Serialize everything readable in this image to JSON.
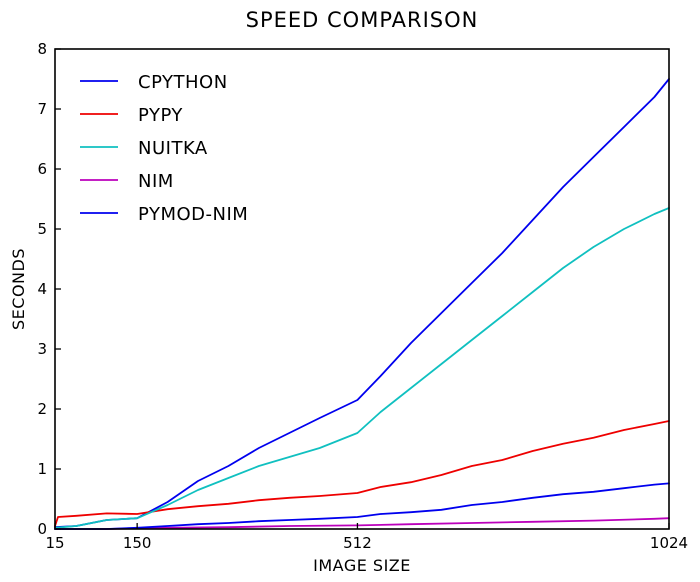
{
  "chart_data": {
    "type": "line",
    "title": "SPEED COMPARISON",
    "xlabel": "IMAGE SIZE",
    "ylabel": "SECONDS",
    "xlim": [
      15,
      1024
    ],
    "ylim": [
      0,
      8
    ],
    "x_ticks": [
      15,
      150,
      512,
      1024
    ],
    "x_tick_labels": [
      "15",
      "150",
      "512",
      "1024"
    ],
    "y_ticks": [
      0,
      1,
      2,
      3,
      4,
      5,
      6,
      7,
      8
    ],
    "y_tick_labels": [
      "0",
      "1",
      "2",
      "3",
      "4",
      "5",
      "6",
      "7",
      "8"
    ],
    "grid": false,
    "legend_position": "top-left",
    "series": [
      {
        "name": "CPYTHON",
        "color": "#0000ee",
        "x": [
          15,
          50,
          100,
          150,
          200,
          250,
          300,
          350,
          400,
          450,
          512,
          550,
          600,
          650,
          700,
          750,
          800,
          850,
          900,
          950,
          1000,
          1024
        ],
        "y": [
          0.03,
          0.05,
          0.15,
          0.18,
          0.45,
          0.8,
          1.05,
          1.35,
          1.6,
          1.85,
          2.15,
          2.55,
          3.1,
          3.6,
          4.1,
          4.6,
          5.15,
          5.7,
          6.2,
          6.7,
          7.2,
          7.5
        ]
      },
      {
        "name": "PYPY",
        "color": "#ee0000",
        "x": [
          15,
          20,
          50,
          100,
          150,
          200,
          250,
          300,
          350,
          400,
          450,
          512,
          550,
          600,
          650,
          700,
          750,
          800,
          850,
          900,
          950,
          1000,
          1024
        ],
        "y": [
          0.05,
          0.2,
          0.22,
          0.26,
          0.25,
          0.33,
          0.38,
          0.42,
          0.48,
          0.52,
          0.55,
          0.6,
          0.7,
          0.78,
          0.9,
          1.05,
          1.15,
          1.3,
          1.42,
          1.52,
          1.65,
          1.75,
          1.8
        ]
      },
      {
        "name": "NUITKA",
        "color": "#10c0c0",
        "x": [
          15,
          50,
          100,
          150,
          200,
          250,
          300,
          350,
          400,
          450,
          512,
          550,
          600,
          650,
          700,
          750,
          800,
          850,
          900,
          950,
          1000,
          1024
        ],
        "y": [
          0.02,
          0.05,
          0.15,
          0.18,
          0.4,
          0.65,
          0.85,
          1.05,
          1.2,
          1.35,
          1.6,
          1.95,
          2.35,
          2.75,
          3.15,
          3.55,
          3.95,
          4.35,
          4.7,
          5.0,
          5.25,
          5.35
        ]
      },
      {
        "name": "NIM",
        "color": "#bb00bb",
        "x": [
          15,
          100,
          150,
          200,
          300,
          400,
          512,
          600,
          700,
          800,
          900,
          1000,
          1024
        ],
        "y": [
          0.0,
          0.0,
          0.01,
          0.02,
          0.03,
          0.05,
          0.06,
          0.08,
          0.1,
          0.12,
          0.14,
          0.17,
          0.18
        ]
      },
      {
        "name": "PYMOD-NIM",
        "color": "#0000ee",
        "x": [
          15,
          100,
          150,
          200,
          250,
          300,
          350,
          400,
          450,
          512,
          550,
          600,
          650,
          700,
          750,
          800,
          850,
          900,
          950,
          1000,
          1024
        ],
        "y": [
          0.0,
          0.0,
          0.02,
          0.05,
          0.08,
          0.1,
          0.13,
          0.15,
          0.17,
          0.2,
          0.25,
          0.28,
          0.32,
          0.4,
          0.45,
          0.52,
          0.58,
          0.62,
          0.68,
          0.74,
          0.76
        ]
      }
    ]
  }
}
